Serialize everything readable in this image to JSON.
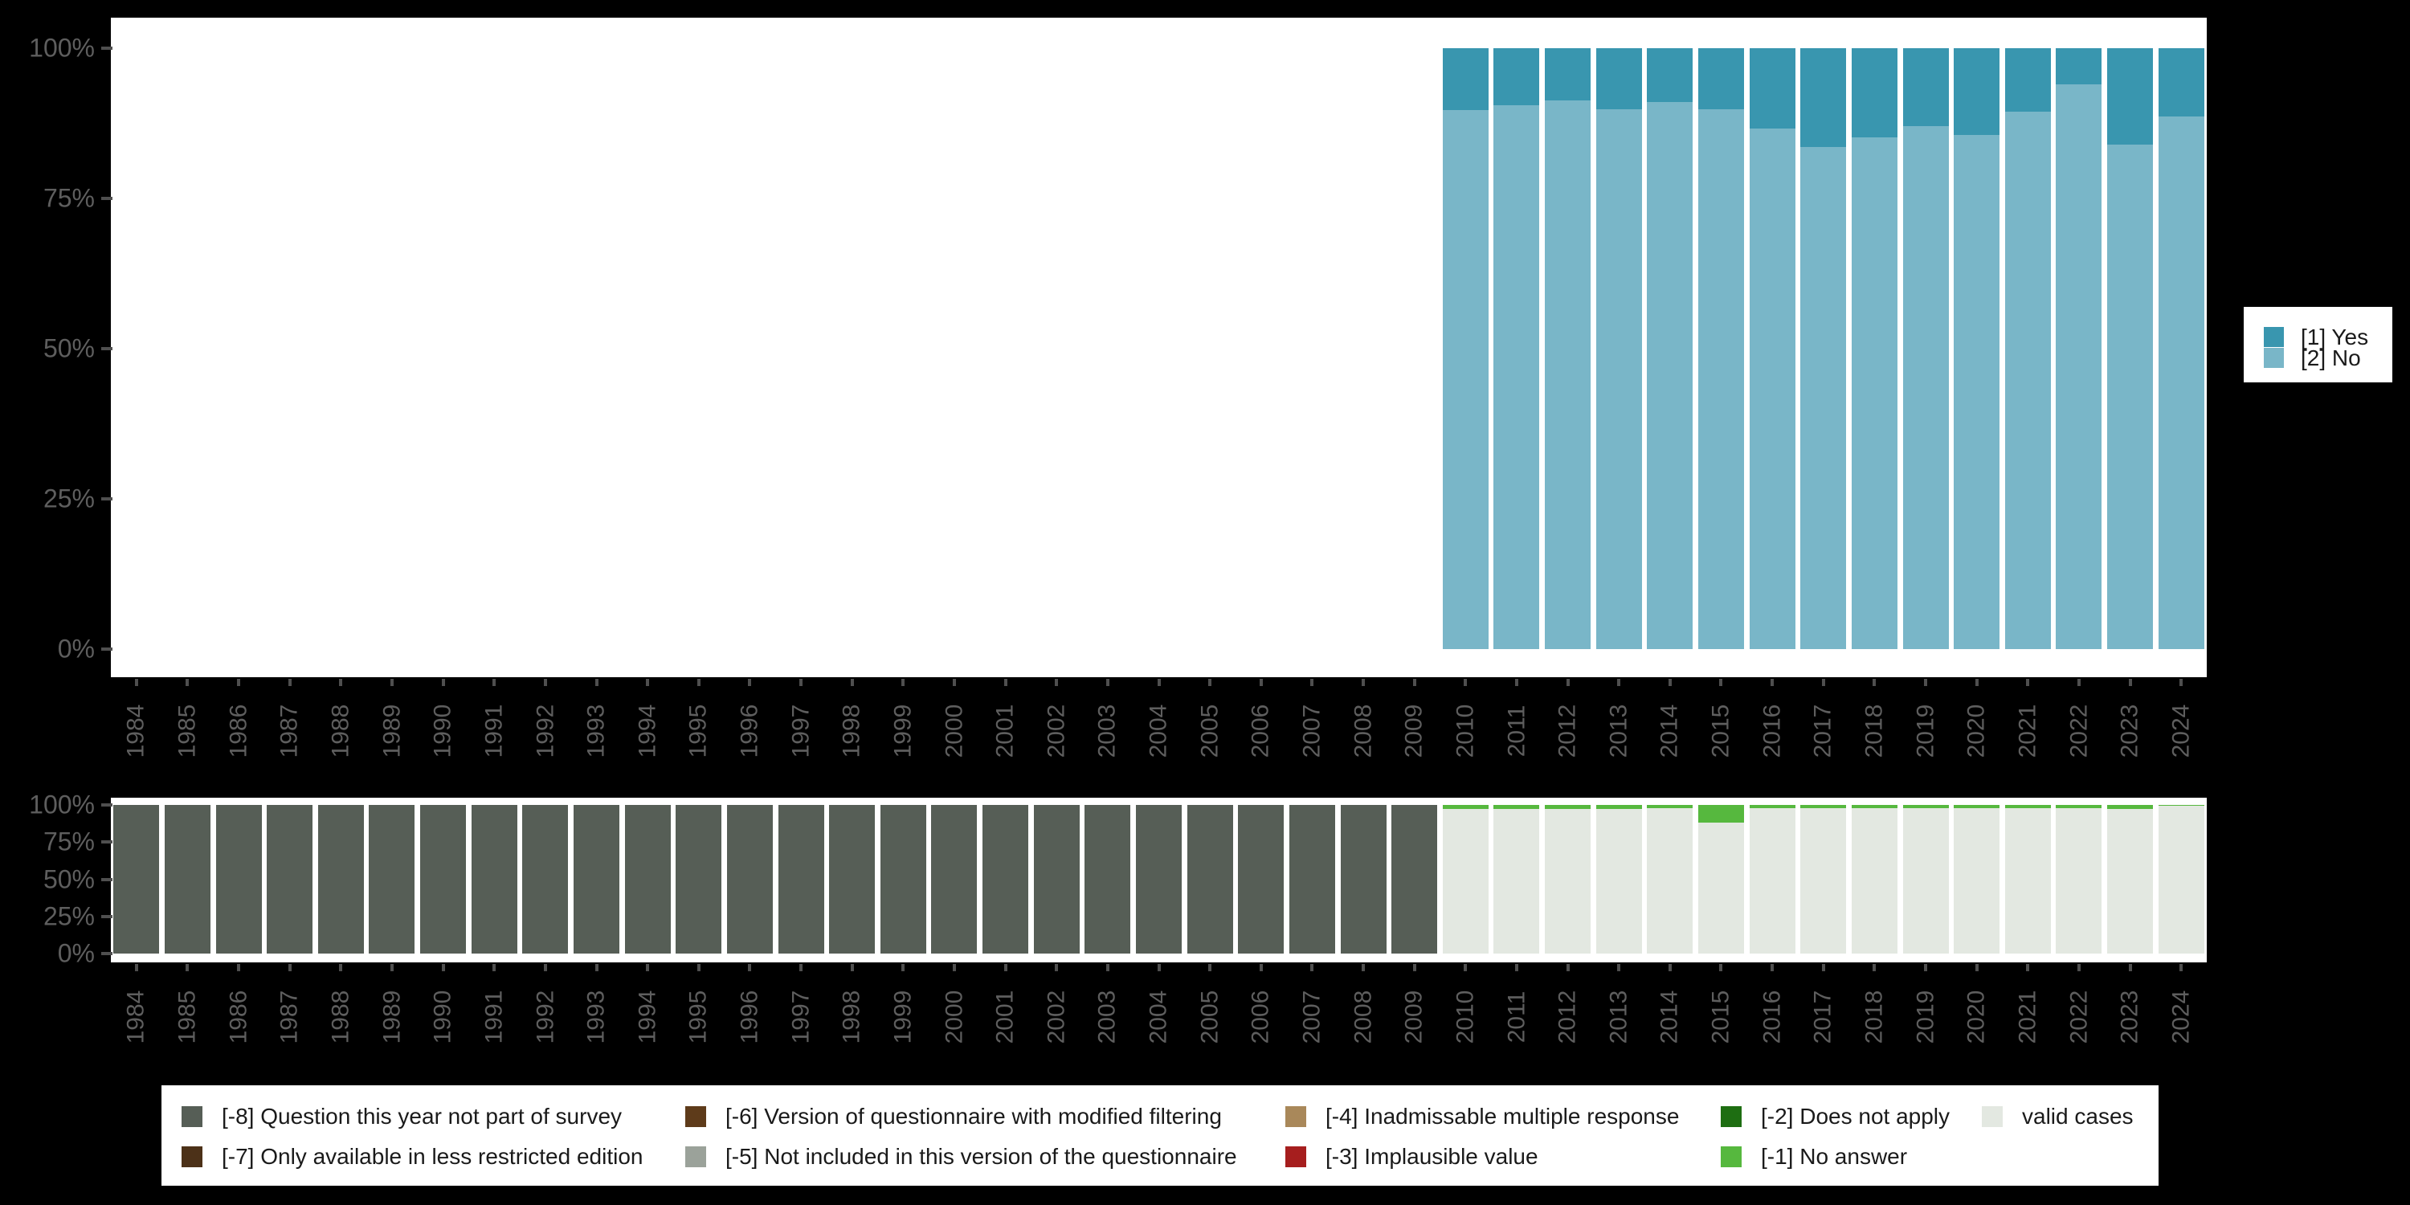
{
  "figure": {
    "background": "#000000",
    "panel_background": "#ffffff"
  },
  "axis": {
    "y_tick_labels": [
      "100%",
      "75%",
      "50%",
      "25%",
      "0%"
    ],
    "y_tick_values": [
      100,
      75,
      50,
      25,
      0
    ],
    "years": [
      "1984",
      "1985",
      "1986",
      "1987",
      "1988",
      "1989",
      "1990",
      "1991",
      "1992",
      "1993",
      "1994",
      "1995",
      "1996",
      "1997",
      "1998",
      "1999",
      "2000",
      "2001",
      "2002",
      "2003",
      "2004",
      "2005",
      "2006",
      "2007",
      "2008",
      "2009",
      "2010",
      "2011",
      "2012",
      "2013",
      "2014",
      "2015",
      "2016",
      "2017",
      "2018",
      "2019",
      "2020",
      "2021",
      "2022",
      "2023",
      "2024"
    ],
    "label_color": "#5e5e5e",
    "tick_color": "#4f4f4f"
  },
  "legend_main": {
    "items": [
      {
        "label": "[1] Yes",
        "color": "#3996af"
      },
      {
        "label": "[2] No",
        "color": "#79b6c8"
      }
    ]
  },
  "legend_missing": {
    "items": [
      {
        "label": "[-8] Question this year not part of survey",
        "color": "#565e56"
      },
      {
        "label": "[-7] Only available in less restricted edition",
        "color": "#4c3118"
      },
      {
        "label": "[-6] Version of questionnaire with modified filtering",
        "color": "#5e3b1a"
      },
      {
        "label": "[-5] Not included in this version of the questionnaire",
        "color": "#9ba29a"
      },
      {
        "label": "[-4] Inadmissable multiple response",
        "color": "#a9885a"
      },
      {
        "label": "[-3] Implausible value",
        "color": "#a61e1e"
      },
      {
        "label": "[-2] Does not apply",
        "color": "#1e6e12"
      },
      {
        "label": "[-1] No answer",
        "color": "#56b83e"
      },
      {
        "label": "valid cases",
        "color": "#e3e8e1"
      }
    ]
  },
  "chart_data": [
    {
      "id": "main",
      "type": "bar",
      "stacked": true,
      "stack_order": "top-to-bottom",
      "title": "",
      "xlabel": "",
      "ylabel": "",
      "ylim": [
        0,
        100
      ],
      "grid": false,
      "legend_position": "right",
      "categories": [
        "1984",
        "1985",
        "1986",
        "1987",
        "1988",
        "1989",
        "1990",
        "1991",
        "1992",
        "1993",
        "1994",
        "1995",
        "1996",
        "1997",
        "1998",
        "1999",
        "2000",
        "2001",
        "2002",
        "2003",
        "2004",
        "2005",
        "2006",
        "2007",
        "2008",
        "2009",
        "2010",
        "2011",
        "2012",
        "2013",
        "2014",
        "2015",
        "2016",
        "2017",
        "2018",
        "2019",
        "2020",
        "2021",
        "2022",
        "2023",
        "2024"
      ],
      "series": [
        {
          "name": "[1] Yes",
          "color": "#3996af",
          "values": [
            null,
            null,
            null,
            null,
            null,
            null,
            null,
            null,
            null,
            null,
            null,
            null,
            null,
            null,
            null,
            null,
            null,
            null,
            null,
            null,
            null,
            null,
            null,
            null,
            null,
            null,
            10.3,
            9.5,
            8.7,
            10.1,
            9.0,
            10.2,
            13.4,
            16.5,
            14.9,
            13.0,
            14.5,
            10.6,
            6.0,
            16.0,
            11.4
          ]
        },
        {
          "name": "[2] No",
          "color": "#79b6c8",
          "values": [
            null,
            null,
            null,
            null,
            null,
            null,
            null,
            null,
            null,
            null,
            null,
            null,
            null,
            null,
            null,
            null,
            null,
            null,
            null,
            null,
            null,
            null,
            null,
            null,
            null,
            null,
            89.7,
            90.5,
            91.3,
            89.9,
            91.0,
            89.8,
            86.6,
            83.5,
            85.1,
            87.0,
            85.5,
            89.4,
            94.0,
            84.0,
            88.6
          ]
        }
      ]
    },
    {
      "id": "missing",
      "type": "bar",
      "stacked": true,
      "stack_order": "top-to-bottom",
      "title": "",
      "xlabel": "",
      "ylabel": "",
      "ylim": [
        0,
        100
      ],
      "grid": false,
      "legend_position": "bottom",
      "categories": [
        "1984",
        "1985",
        "1986",
        "1987",
        "1988",
        "1989",
        "1990",
        "1991",
        "1992",
        "1993",
        "1994",
        "1995",
        "1996",
        "1997",
        "1998",
        "1999",
        "2000",
        "2001",
        "2002",
        "2003",
        "2004",
        "2005",
        "2006",
        "2007",
        "2008",
        "2009",
        "2010",
        "2011",
        "2012",
        "2013",
        "2014",
        "2015",
        "2016",
        "2017",
        "2018",
        "2019",
        "2020",
        "2021",
        "2022",
        "2023",
        "2024"
      ],
      "series": [
        {
          "name": "[-8] Question this year not part of survey",
          "color": "#565e56",
          "values": [
            100,
            100,
            100,
            100,
            100,
            100,
            100,
            100,
            100,
            100,
            100,
            100,
            100,
            100,
            100,
            100,
            100,
            100,
            100,
            100,
            100,
            100,
            100,
            100,
            100,
            100,
            null,
            null,
            null,
            null,
            null,
            null,
            null,
            null,
            null,
            null,
            null,
            null,
            null,
            null,
            null
          ]
        },
        {
          "name": "[-1] No answer",
          "color": "#56b83e",
          "values": [
            null,
            null,
            null,
            null,
            null,
            null,
            null,
            null,
            null,
            null,
            null,
            null,
            null,
            null,
            null,
            null,
            null,
            null,
            null,
            null,
            null,
            null,
            null,
            null,
            null,
            null,
            2.9,
            2.9,
            2.5,
            2.5,
            2.2,
            11.8,
            2.4,
            2.4,
            2.0,
            2.0,
            2.4,
            2.0,
            2.4,
            2.5,
            0.8
          ]
        },
        {
          "name": "valid cases",
          "color": "#e3e8e1",
          "values": [
            null,
            null,
            null,
            null,
            null,
            null,
            null,
            null,
            null,
            null,
            null,
            null,
            null,
            null,
            null,
            null,
            null,
            null,
            null,
            null,
            null,
            null,
            null,
            null,
            null,
            null,
            97.1,
            97.1,
            97.5,
            97.5,
            97.8,
            88.2,
            97.6,
            97.6,
            98.0,
            98.0,
            97.6,
            98.0,
            97.6,
            97.5,
            99.2
          ]
        }
      ]
    }
  ]
}
